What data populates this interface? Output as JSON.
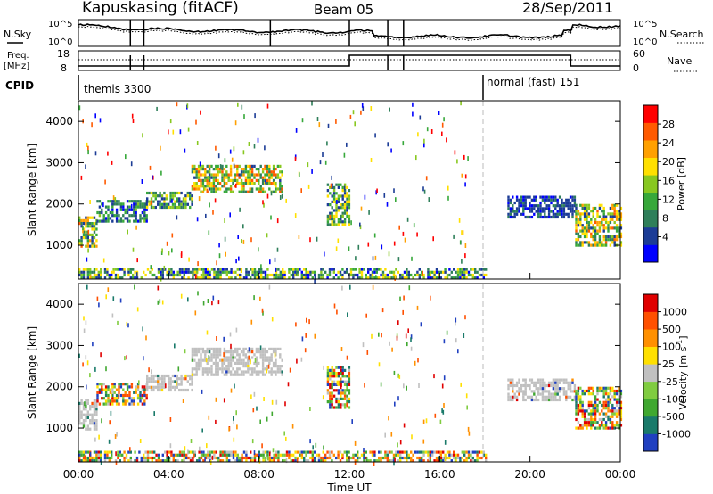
{
  "header": {
    "station": "Kapuskasing (fitACF)",
    "beam": "Beam 05",
    "date": "28/Sep/2011"
  },
  "aux": {
    "nsky_label": "N.Sky",
    "nsky_ticks": [
      "10^5",
      "10^0"
    ],
    "nsearch_label": "N.Search",
    "nsearch_ticks": [
      "10^5",
      "10^0"
    ],
    "freq_label": "Freq.",
    "freq_unit": "[MHz]",
    "freq_ticks": [
      "18",
      "8"
    ],
    "nave_label": "Nave",
    "nave_ticks": [
      "60",
      "0"
    ],
    "cpid_label": "CPID",
    "cpid_segments": [
      {
        "label": "themis 3300",
        "start_hr": 0,
        "end_hr": 18
      },
      {
        "label": "normal (fast) 151",
        "start_hr": 18,
        "end_hr": 24
      }
    ]
  },
  "colors": {
    "power": [
      "#0000ff",
      "#1c3c96",
      "#2f7f5a",
      "#37a83a",
      "#88c820",
      "#ffe000",
      "#ffa000",
      "#ff5a00",
      "#ff0000"
    ],
    "velocity": [
      "#2040c0",
      "#1a7a6a",
      "#40a830",
      "#80cc40",
      "#c0c0c0",
      "#ffe000",
      "#ff9000",
      "#ff5000",
      "#e00000"
    ],
    "ground": "#c0c0c0"
  },
  "chart_data": [
    {
      "type": "heatmap",
      "name": "power",
      "xlabel": "",
      "ylabel": "Slant Range [km]",
      "x_ticks": [
        "00:00",
        "04:00",
        "08:00",
        "12:00",
        "16:00",
        "20:00",
        "00:00"
      ],
      "xlim_hr": [
        0,
        24
      ],
      "ylim": [
        180,
        4500
      ],
      "y_ticks": [
        1000,
        2000,
        3000,
        4000
      ],
      "colorbar": {
        "label": "Power [dB]",
        "ticks": [
          "28",
          "24",
          "20",
          "16",
          "12",
          "8",
          "4"
        ],
        "range": [
          0,
          30
        ]
      },
      "regions": [
        {
          "t0": 0.0,
          "t1": 0.8,
          "r0": 1000,
          "r1": 1700,
          "v0": 4,
          "v1": 24
        },
        {
          "t0": 0.8,
          "t1": 3.0,
          "r0": 1600,
          "r1": 2100,
          "v0": 2,
          "v1": 14
        },
        {
          "t0": 3.0,
          "t1": 5.0,
          "r0": 1900,
          "r1": 2300,
          "v0": 4,
          "v1": 18
        },
        {
          "t0": 5.0,
          "t1": 9.0,
          "r0": 2300,
          "r1": 2950,
          "v0": 6,
          "v1": 26
        },
        {
          "t0": 11.0,
          "t1": 12.0,
          "r0": 1500,
          "r1": 2500,
          "v0": 4,
          "v1": 20
        },
        {
          "t0": 0.0,
          "t1": 18.0,
          "r0": 200,
          "r1": 450,
          "v0": 2,
          "v1": 20
        },
        {
          "t0": 19.0,
          "t1": 22.0,
          "r0": 1700,
          "r1": 2200,
          "v0": 2,
          "v1": 8
        },
        {
          "t0": 22.0,
          "t1": 24.0,
          "r0": 1000,
          "r1": 2000,
          "v0": 4,
          "v1": 24
        }
      ]
    },
    {
      "type": "heatmap",
      "name": "velocity",
      "xlabel": "Time UT",
      "ylabel": "Slant Range [km]",
      "x_ticks": [
        "00:00",
        "04:00",
        "08:00",
        "12:00",
        "16:00",
        "20:00",
        "00:00"
      ],
      "xlim_hr": [
        0,
        24
      ],
      "ylim": [
        180,
        4500
      ],
      "y_ticks": [
        1000,
        2000,
        3000,
        4000
      ],
      "colorbar": {
        "label": "Velocity [m s^-1]",
        "ticks": [
          "1000",
          "500",
          "100",
          "25",
          "-25",
          "-100",
          "-500",
          "-1000"
        ]
      },
      "regions": [
        {
          "t0": 0.0,
          "t1": 0.8,
          "r0": 1000,
          "r1": 1700,
          "kind": "ground"
        },
        {
          "t0": 0.8,
          "t1": 3.0,
          "r0": 1600,
          "r1": 2100,
          "kind": "mixed"
        },
        {
          "t0": 3.0,
          "t1": 5.0,
          "r0": 1900,
          "r1": 2300,
          "kind": "ground"
        },
        {
          "t0": 5.0,
          "t1": 9.0,
          "r0": 2300,
          "r1": 2950,
          "kind": "ground"
        },
        {
          "t0": 11.0,
          "t1": 12.0,
          "r0": 1500,
          "r1": 2500,
          "kind": "mixed"
        },
        {
          "t0": 0.0,
          "t1": 18.0,
          "r0": 200,
          "r1": 450,
          "kind": "mixed"
        },
        {
          "t0": 19.0,
          "t1": 22.0,
          "r0": 1700,
          "r1": 2200,
          "kind": "ground"
        },
        {
          "t0": 22.0,
          "t1": 24.0,
          "r0": 1000,
          "r1": 2000,
          "kind": "mixed"
        }
      ]
    }
  ]
}
